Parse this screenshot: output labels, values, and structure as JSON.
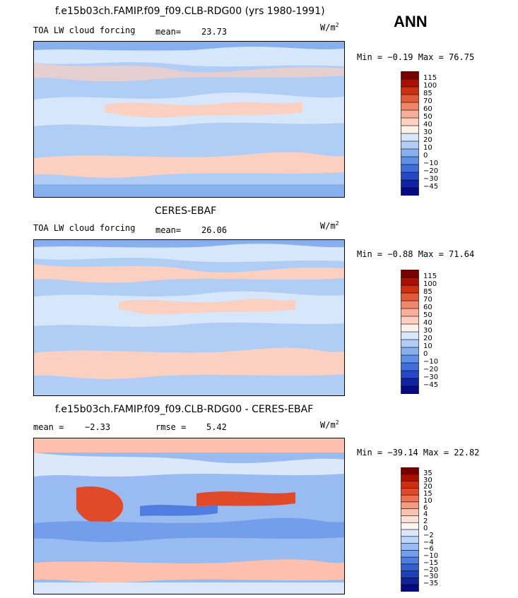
{
  "season": "ANN",
  "panels": [
    {
      "title": "f.e15b03ch.FAMIP.f09_f09.CLB-RDG00 (yrs 1980-1991)",
      "left_label": "TOA LW cloud forcing",
      "stat_label": "mean=",
      "stat_value": "23.73",
      "units": "W/m",
      "units_exp": "2",
      "minmax": "Min =  −0.19 Max =  76.75",
      "colorbar_labels": [
        "115",
        "100",
        "85",
        "70",
        "60",
        "50",
        "40",
        "30",
        "20",
        "10",
        "0",
        "−10",
        "−20",
        "−30",
        "−45"
      ],
      "colors": [
        "#7a0000",
        "#aa1000",
        "#cc3010",
        "#e25a38",
        "#f0856a",
        "#f8ae98",
        "#fcd0c0",
        "#fff0e8",
        "#d6e6fb",
        "#b0cdf6",
        "#88b0ef",
        "#5e8fe6",
        "#3f6ddc",
        "#2448c8",
        "#0f23a4",
        "#060b84"
      ]
    },
    {
      "title": "CERES-EBAF",
      "left_label": "TOA LW cloud forcing",
      "stat_label": "mean=",
      "stat_value": "26.06",
      "units": "W/m",
      "units_exp": "2",
      "minmax": "Min =  −0.88 Max =  71.64",
      "colorbar_labels": [
        "115",
        "100",
        "85",
        "70",
        "60",
        "50",
        "40",
        "30",
        "20",
        "10",
        "0",
        "−10",
        "−20",
        "−30",
        "−45"
      ],
      "colors": [
        "#7a0000",
        "#aa1000",
        "#cc3010",
        "#e25a38",
        "#f0856a",
        "#f8ae98",
        "#fcd0c0",
        "#fff0e8",
        "#d6e6fb",
        "#b0cdf6",
        "#88b0ef",
        "#5e8fe6",
        "#3f6ddc",
        "#2448c8",
        "#0f23a4",
        "#060b84"
      ]
    },
    {
      "title": "f.e15b03ch.FAMIP.f09_f09.CLB-RDG00 - CERES-EBAF",
      "left_label": "mean =",
      "left_value": "−2.33",
      "stat_label": "rmse =",
      "stat_value": "5.42",
      "units": "W/m",
      "units_exp": "2",
      "minmax": "Min = −39.14 Max =  22.82",
      "colorbar_labels": [
        "35",
        "30",
        "20",
        "15",
        "10",
        "6",
        "4",
        "2",
        "0",
        "−2",
        "−4",
        "−6",
        "−10",
        "−15",
        "−20",
        "−30",
        "−35"
      ],
      "colors": [
        "#7a0000",
        "#aa1000",
        "#cc3010",
        "#e04a28",
        "#f07050",
        "#f89a80",
        "#fcc0ac",
        "#fde0d4",
        "#fff6f0",
        "#dbe8fb",
        "#bcd4f7",
        "#98bbf1",
        "#739ee9",
        "#507ee0",
        "#345ed4",
        "#1e3fc0",
        "#0e22a0",
        "#060b84"
      ]
    }
  ],
  "chart_data": [
    {
      "type": "heatmap",
      "title": "f.e15b03ch.FAMIP.f09_f09.CLB-RDG00 (yrs 1980-1991)",
      "field": "TOA LW cloud forcing",
      "units": "W/m2",
      "mean": 23.73,
      "min": -0.19,
      "max": 76.75,
      "levels": [
        -45,
        -30,
        -20,
        -10,
        0,
        10,
        20,
        30,
        40,
        50,
        60,
        70,
        85,
        100,
        115
      ]
    },
    {
      "type": "heatmap",
      "title": "CERES-EBAF",
      "field": "TOA LW cloud forcing",
      "units": "W/m2",
      "mean": 26.06,
      "min": -0.88,
      "max": 71.64,
      "levels": [
        -45,
        -30,
        -20,
        -10,
        0,
        10,
        20,
        30,
        40,
        50,
        60,
        70,
        85,
        100,
        115
      ]
    },
    {
      "type": "heatmap",
      "title": "f.e15b03ch.FAMIP.f09_f09.CLB-RDG00 - CERES-EBAF",
      "units": "W/m2",
      "mean": -2.33,
      "rmse": 5.42,
      "min": -39.14,
      "max": 22.82,
      "levels": [
        -35,
        -30,
        -20,
        -15,
        -10,
        -6,
        -4,
        -2,
        0,
        2,
        4,
        6,
        10,
        15,
        20,
        30,
        35
      ]
    }
  ]
}
